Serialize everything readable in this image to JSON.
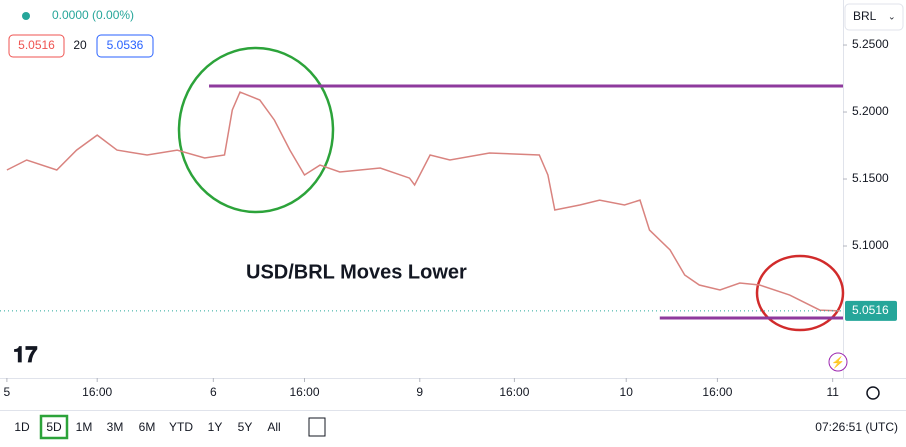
{
  "chart_data": {
    "type": "line",
    "symbol_change": "0.0000 (0.00%)",
    "bid": 5.0516,
    "spread": 20,
    "ask": 5.0536,
    "currency": "BRL",
    "last_price": 5.0516,
    "annotation": "USD/BRL Moves Lower",
    "x": [
      0,
      2.3,
      5.8,
      8.1,
      10.5,
      12.8,
      16.3,
      19.8,
      23,
      25.3,
      26.2,
      27.1,
      29.4,
      31.1,
      32.9,
      34.6,
      36.4,
      38.7,
      43.4,
      46.8,
      47.4,
      49.2,
      51.5,
      56.1,
      61.9,
      62.9,
      63.7,
      66.6,
      68.9,
      71.8,
      73.6,
      74.7,
      77.1,
      78.8,
      80.5,
      82.9,
      85.2,
      87.5,
      91,
      94.5,
      96.8
    ],
    "values": [
      5.1567,
      5.1642,
      5.1567,
      5.1716,
      5.1828,
      5.1716,
      5.1679,
      5.1716,
      5.1657,
      5.1679,
      5.2015,
      5.2149,
      5.209,
      5.194,
      5.1716,
      5.153,
      5.1604,
      5.1552,
      5.1582,
      5.1507,
      5.1455,
      5.1679,
      5.1642,
      5.1694,
      5.1679,
      5.153,
      5.1269,
      5.1306,
      5.1343,
      5.1306,
      5.1343,
      5.1119,
      5.097,
      5.0784,
      5.0709,
      5.0672,
      5.0724,
      5.0709,
      5.0634,
      5.0522,
      5.0516
    ],
    "color": "#d9837f",
    "levels": [
      {
        "value": 5.2194,
        "x": [
          23.5,
          97.2
        ],
        "color": "#8e3a9d"
      },
      {
        "value": 5.0463,
        "x": [
          75.9,
          97.2
        ],
        "color": "#8e3a9d"
      }
    ],
    "xlim": [
      -0.8,
      97.2
    ],
    "ylim": [
      5.0015,
      5.2836
    ],
    "xticks": [
      {
        "value": 0,
        "label": "5"
      },
      {
        "value": 10.5,
        "label": "16:00"
      },
      {
        "value": 24,
        "label": "6"
      },
      {
        "value": 34.6,
        "label": "16:00"
      },
      {
        "value": 48,
        "label": "9"
      },
      {
        "value": 59,
        "label": "16:00"
      },
      {
        "value": 72,
        "label": "10"
      },
      {
        "value": 82.6,
        "label": "16:00"
      },
      {
        "value": 96,
        "label": "11"
      }
    ],
    "yticks": [
      {
        "value": 5.25,
        "label": "5.2500"
      },
      {
        "value": 5.2,
        "label": "5.2000"
      },
      {
        "value": 5.15,
        "label": "5.1500"
      },
      {
        "value": 5.1,
        "label": "5.1000"
      }
    ],
    "timeframes": [
      "1D",
      "5D",
      "1M",
      "3M",
      "6M",
      "YTD",
      "1Y",
      "5Y",
      "All"
    ],
    "active_timeframe": 1,
    "clock": "07:26:51 (UTC)"
  }
}
